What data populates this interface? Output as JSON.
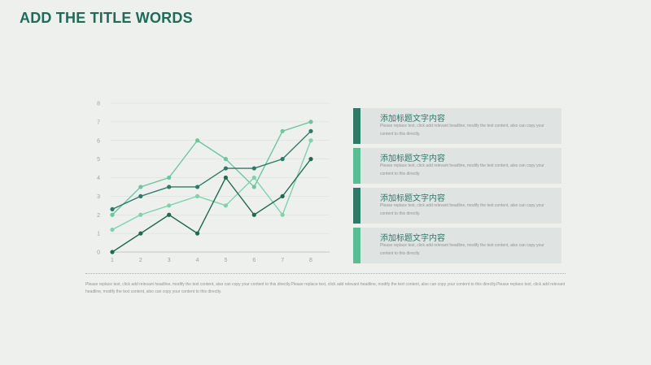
{
  "slide": {
    "title": "ADD THE TITLE WORDS",
    "footer_text": "Please replace text, click add relevant headline, modify the text content, also can copy your content to this directly.Please replace text, click add relevant headline, modify the text content, also can copy your content to this directly.Please replace text, click add relevant headline, modify the text content, also can copy your content to this directly."
  },
  "cards": [
    {
      "title": "添加标题文字内容",
      "body": "Please replace text, click add relevant headline, modify the text content, also can copy your content to this directly.",
      "accent": "#2d7a67"
    },
    {
      "title": "添加标题文字内容",
      "body": "Please replace text, click add relevant headline, modify the text content, also can copy your content to this directly.",
      "accent": "#5cbb93"
    },
    {
      "title": "添加标题文字内容",
      "body": "Please replace text, click add relevant headline, modify the text content, also can copy your content to this directly.",
      "accent": "#2d7a67"
    },
    {
      "title": "添加标题文字内容",
      "body": "Please replace text, click add relevant headline, modify the text content, also can copy your content to this directly.",
      "accent": "#5cbb93"
    }
  ],
  "colors": {
    "title": "#1f6b5a",
    "series_1": "#6cc6a0",
    "series_2": "#2d7a67",
    "series_3": "#7fd2ad",
    "series_4": "#1f6b4f",
    "grid": "#d7dcda",
    "axis": "#b6bdba"
  },
  "chart_data": {
    "type": "line",
    "x": [
      1,
      2,
      3,
      4,
      5,
      6,
      7,
      8
    ],
    "ylim": [
      0,
      8
    ],
    "yticks": [
      0,
      1,
      2,
      3,
      4,
      5,
      6,
      7,
      8
    ],
    "grid": true,
    "series": [
      {
        "values": [
          2,
          3.5,
          4,
          6,
          5,
          3.5,
          6.5,
          7
        ]
      },
      {
        "values": [
          2.3,
          3,
          3.5,
          3.5,
          4.5,
          4.5,
          5,
          6.5
        ]
      },
      {
        "values": [
          1.2,
          2,
          2.5,
          3,
          2.5,
          4,
          2,
          6
        ]
      },
      {
        "values": [
          0,
          1,
          2,
          1,
          4,
          2,
          3,
          5
        ]
      }
    ]
  }
}
